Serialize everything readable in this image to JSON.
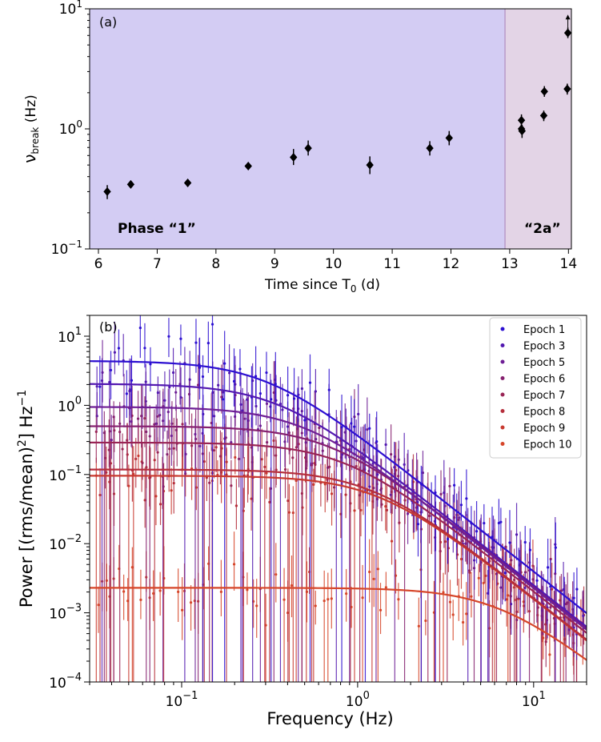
{
  "colors": {
    "phase1_bg": "#d3ccf3",
    "phase2a_bg": "#e3d4e6",
    "phase_divider": "#b89ac8",
    "marker": "#000000"
  },
  "chart_data": [
    {
      "type": "scatter",
      "panel_label": "(a)",
      "xlabel": "Time since T",
      "xlabel_sub": "0",
      "xlabel_suffix": " (d)",
      "ylabel": "ν",
      "ylabel_sub": "break",
      "ylabel_suffix": " (Hz)",
      "xlim": [
        5.85,
        14.05
      ],
      "ylim": [
        0.1,
        10
      ],
      "yscale": "log",
      "xticks": [
        "6",
        "7",
        "8",
        "9",
        "10",
        "11",
        "12",
        "13",
        "14"
      ],
      "ytick_mantissa": [
        "10",
        "10",
        "10"
      ],
      "ytick_exponents": [
        "−1",
        "0",
        "1"
      ],
      "phase_boundary": 12.92,
      "phase1_label": "Phase “1”",
      "phase2a_label": "“2a”",
      "points": [
        {
          "x": 6.15,
          "y": 0.3,
          "lo": 0.26,
          "hi": 0.34
        },
        {
          "x": 6.55,
          "y": 0.345,
          "lo": 0.33,
          "hi": 0.36
        },
        {
          "x": 7.52,
          "y": 0.355,
          "lo": 0.34,
          "hi": 0.37
        },
        {
          "x": 8.55,
          "y": 0.49,
          "lo": 0.47,
          "hi": 0.51
        },
        {
          "x": 9.32,
          "y": 0.58,
          "lo": 0.5,
          "hi": 0.68
        },
        {
          "x": 9.57,
          "y": 0.69,
          "lo": 0.6,
          "hi": 0.8
        },
        {
          "x": 10.62,
          "y": 0.5,
          "lo": 0.42,
          "hi": 0.59
        },
        {
          "x": 11.64,
          "y": 0.69,
          "lo": 0.6,
          "hi": 0.79
        },
        {
          "x": 11.97,
          "y": 0.84,
          "lo": 0.73,
          "hi": 0.96
        },
        {
          "x": 13.2,
          "y": 1.18,
          "lo": 1.06,
          "hi": 1.32
        },
        {
          "x": 13.2,
          "y": 1.0,
          "lo": 0.9,
          "hi": 1.1
        },
        {
          "x": 13.21,
          "y": 0.96,
          "lo": 0.84,
          "hi": 1.08
        },
        {
          "x": 13.59,
          "y": 2.05,
          "lo": 1.85,
          "hi": 2.27
        },
        {
          "x": 13.58,
          "y": 1.29,
          "lo": 1.16,
          "hi": 1.42
        },
        {
          "x": 13.98,
          "y": 2.15,
          "lo": 1.93,
          "hi": 2.38
        },
        {
          "x": 13.99,
          "y": 6.3,
          "lo": 5.7,
          "hi": 7.0,
          "lower_limit": true
        }
      ]
    },
    {
      "type": "line",
      "panel_label": "(b)",
      "xlabel": "Frequency (Hz)",
      "ylabel": "Power [(rms/mean)",
      "ylabel_sup1": "2",
      "ylabel_mid": "] Hz",
      "ylabel_sup2": "−1",
      "xscale": "log",
      "yscale": "log",
      "xlim": [
        0.03,
        20
      ],
      "ylim": [
        0.0001,
        20
      ],
      "xtick_mantissa": [
        "10",
        "10",
        "10"
      ],
      "xtick_exponents": [
        "−1",
        "0",
        "1"
      ],
      "ytick_mantissa": [
        "10",
        "10",
        "10",
        "10",
        "10",
        "10"
      ],
      "ytick_exponents": [
        "−4",
        "−3",
        "−2",
        "−1",
        "0",
        "1"
      ],
      "model": "Lorentzian: P0 / (1 + (f/fb)^2)",
      "series": [
        {
          "name": "Epoch 1",
          "color": "#2c0fd1",
          "P0": 4.4,
          "fb": 0.3
        },
        {
          "name": "Epoch 3",
          "color": "#5218b0",
          "P0": 2.05,
          "fb": 0.35
        },
        {
          "name": "Epoch 5",
          "color": "#6e1e95",
          "P0": 0.95,
          "fb": 0.49
        },
        {
          "name": "Epoch 6",
          "color": "#85206f",
          "P0": 0.5,
          "fb": 0.69
        },
        {
          "name": "Epoch 7",
          "color": "#992455",
          "P0": 0.29,
          "fb": 0.84
        },
        {
          "name": "Epoch 8",
          "color": "#b52e3b",
          "P0": 0.118,
          "fb": 1.18
        },
        {
          "name": "Epoch 9",
          "color": "#c8392f",
          "P0": 0.096,
          "fb": 1.29
        },
        {
          "name": "Epoch 10",
          "color": "#d6462a",
          "P0": 0.0023,
          "fb": 6.3
        }
      ]
    }
  ]
}
